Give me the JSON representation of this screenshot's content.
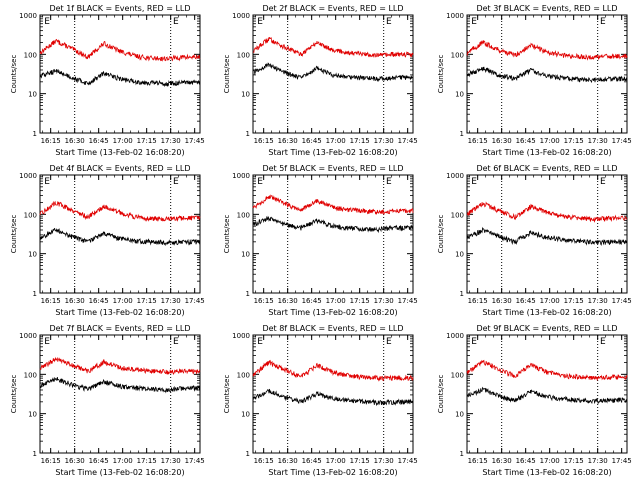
{
  "chart_data": [
    {
      "type": "line",
      "title": "Det 1f BLACK = Events, RED = LLD",
      "ylabel": "Counts/sec",
      "xlabel": "Start Time (13-Feb-02 16:08:20)",
      "tick_labels": [
        "16:15",
        "16:30",
        "16:45",
        "17:00",
        "17:15",
        "17:30",
        "17:45"
      ],
      "ylim": [
        1,
        1000
      ],
      "y_scale": "log",
      "y_tick_labels": [
        "1",
        "10",
        "100",
        "1000"
      ],
      "marker_label": "E",
      "colors": {
        "events": "#000000",
        "lld": "#e00000"
      },
      "series": [
        {
          "role": "lld",
          "x": [
            0,
            10,
            20,
            30,
            40,
            50,
            60,
            70,
            80,
            90
          ],
          "values": [
            110,
            220,
            140,
            85,
            190,
            120,
            90,
            80,
            78,
            85
          ]
        },
        {
          "role": "events",
          "x": [
            0,
            10,
            20,
            30,
            40,
            50,
            60,
            70,
            80,
            90
          ],
          "values": [
            28,
            38,
            26,
            18,
            33,
            24,
            20,
            19,
            18,
            19
          ]
        }
      ]
    },
    {
      "type": "line",
      "title": "Det 2f BLACK = Events, RED = LLD",
      "ylabel": "Counts/sec",
      "xlabel": "Start Time (13-Feb-02 16:08:20)",
      "tick_labels": [
        "16:15",
        "16:30",
        "16:45",
        "17:00",
        "17:15",
        "17:30",
        "17:45"
      ],
      "ylim": [
        1,
        1000
      ],
      "y_scale": "log",
      "y_tick_labels": [
        "1",
        "10",
        "100",
        "1000"
      ],
      "marker_label": "E",
      "colors": {
        "events": "#000000",
        "lld": "#e00000"
      },
      "series": [
        {
          "role": "lld",
          "x": [
            0,
            10,
            20,
            30,
            40,
            50,
            60,
            70,
            80,
            90
          ],
          "values": [
            120,
            250,
            150,
            100,
            200,
            130,
            110,
            100,
            95,
            100
          ]
        },
        {
          "role": "events",
          "x": [
            0,
            10,
            20,
            30,
            40,
            50,
            60,
            70,
            80,
            90
          ],
          "values": [
            35,
            55,
            35,
            25,
            45,
            30,
            27,
            25,
            24,
            26
          ]
        }
      ]
    },
    {
      "type": "line",
      "title": "Det 3f BLACK = Events, RED = LLD",
      "ylabel": "Counts/sec",
      "xlabel": "Start Time (13-Feb-02 16:08:20)",
      "tick_labels": [
        "16:15",
        "16:30",
        "16:45",
        "17:00",
        "17:15",
        "17:30",
        "17:45"
      ],
      "ylim": [
        1,
        1000
      ],
      "y_scale": "log",
      "y_tick_labels": [
        "1",
        "10",
        "100",
        "1000"
      ],
      "marker_label": "E",
      "colors": {
        "events": "#000000",
        "lld": "#e00000"
      },
      "series": [
        {
          "role": "lld",
          "x": [
            0,
            10,
            20,
            30,
            40,
            50,
            60,
            70,
            80,
            90
          ],
          "values": [
            110,
            200,
            130,
            95,
            170,
            115,
            95,
            88,
            84,
            90
          ]
        },
        {
          "role": "events",
          "x": [
            0,
            10,
            20,
            30,
            40,
            50,
            60,
            70,
            80,
            90
          ],
          "values": [
            30,
            45,
            30,
            24,
            40,
            28,
            25,
            23,
            22,
            24
          ]
        }
      ]
    },
    {
      "type": "line",
      "title": "Det 4f BLACK = Events, RED = LLD",
      "ylabel": "Counts/sec",
      "xlabel": "Start Time (13-Feb-02 16:08:20)",
      "tick_labels": [
        "16:15",
        "16:30",
        "16:45",
        "17:00",
        "17:15",
        "17:30",
        "17:45"
      ],
      "ylim": [
        1,
        1000
      ],
      "y_scale": "log",
      "y_tick_labels": [
        "1",
        "10",
        "100",
        "1000"
      ],
      "marker_label": "E",
      "colors": {
        "events": "#000000",
        "lld": "#e00000"
      },
      "series": [
        {
          "role": "lld",
          "x": [
            0,
            10,
            20,
            30,
            40,
            50,
            60,
            70,
            80,
            90
          ],
          "values": [
            100,
            200,
            130,
            85,
            160,
            110,
            85,
            78,
            76,
            80
          ]
        },
        {
          "role": "events",
          "x": [
            0,
            10,
            20,
            30,
            40,
            50,
            60,
            70,
            80,
            90
          ],
          "values": [
            25,
            40,
            27,
            20,
            33,
            24,
            21,
            20,
            19,
            20
          ]
        }
      ]
    },
    {
      "type": "line",
      "title": "Det 5f BLACK = Events, RED = LLD",
      "ylabel": "Counts/sec",
      "xlabel": "Start Time (13-Feb-02 16:08:20)",
      "tick_labels": [
        "16:15",
        "16:30",
        "16:45",
        "17:00",
        "17:15",
        "17:30",
        "17:45"
      ],
      "ylim": [
        1,
        1000
      ],
      "y_scale": "log",
      "y_tick_labels": [
        "1",
        "10",
        "100",
        "1000"
      ],
      "marker_label": "E",
      "colors": {
        "events": "#000000",
        "lld": "#e00000"
      },
      "series": [
        {
          "role": "lld",
          "x": [
            0,
            10,
            20,
            30,
            40,
            50,
            60,
            70,
            80,
            90
          ],
          "values": [
            150,
            280,
            190,
            130,
            220,
            150,
            130,
            120,
            115,
            125
          ]
        },
        {
          "role": "events",
          "x": [
            0,
            10,
            20,
            30,
            40,
            50,
            60,
            70,
            80,
            90
          ],
          "values": [
            55,
            80,
            55,
            45,
            70,
            50,
            45,
            42,
            42,
            45
          ]
        }
      ]
    },
    {
      "type": "line",
      "title": "Det 6f BLACK = Events, RED = LLD",
      "ylabel": "Counts/sec",
      "xlabel": "Start Time (13-Feb-02 16:08:20)",
      "tick_labels": [
        "16:15",
        "16:30",
        "16:45",
        "17:00",
        "17:15",
        "17:30",
        "17:45"
      ],
      "ylim": [
        1,
        1000
      ],
      "y_scale": "log",
      "y_tick_labels": [
        "1",
        "10",
        "100",
        "1000"
      ],
      "marker_label": "E",
      "colors": {
        "events": "#000000",
        "lld": "#e00000"
      },
      "series": [
        {
          "role": "lld",
          "x": [
            0,
            10,
            20,
            30,
            40,
            50,
            60,
            70,
            80,
            90
          ],
          "values": [
            100,
            190,
            125,
            85,
            160,
            110,
            90,
            80,
            76,
            80
          ]
        },
        {
          "role": "events",
          "x": [
            0,
            10,
            20,
            30,
            40,
            50,
            60,
            70,
            80,
            90
          ],
          "values": [
            25,
            40,
            27,
            20,
            35,
            26,
            23,
            21,
            19,
            20
          ]
        }
      ]
    },
    {
      "type": "line",
      "title": "Det 7f BLACK = Events, RED = LLD",
      "ylabel": "Counts/sec",
      "xlabel": "Start Time (13-Feb-02 16:08:20)",
      "tick_labels": [
        "16:15",
        "16:30",
        "16:45",
        "17:00",
        "17:15",
        "17:30",
        "17:45"
      ],
      "ylim": [
        1,
        1000
      ],
      "y_scale": "log",
      "y_tick_labels": [
        "1",
        "10",
        "100",
        "1000"
      ],
      "marker_label": "E",
      "colors": {
        "events": "#000000",
        "lld": "#e00000"
      },
      "series": [
        {
          "role": "lld",
          "x": [
            0,
            10,
            20,
            30,
            40,
            50,
            60,
            70,
            80,
            90
          ],
          "values": [
            140,
            250,
            170,
            120,
            210,
            150,
            130,
            120,
            115,
            120
          ]
        },
        {
          "role": "events",
          "x": [
            0,
            10,
            20,
            30,
            40,
            50,
            60,
            70,
            80,
            90
          ],
          "values": [
            50,
            80,
            55,
            42,
            65,
            50,
            45,
            42,
            40,
            45
          ]
        }
      ]
    },
    {
      "type": "line",
      "title": "Det 8f BLACK = Events, RED = LLD",
      "ylabel": "Counts/sec",
      "xlabel": "Start Time (13-Feb-02 16:08:20)",
      "tick_labels": [
        "16:15",
        "16:30",
        "16:45",
        "17:00",
        "17:15",
        "17:30",
        "17:45"
      ],
      "ylim": [
        1,
        1000
      ],
      "y_scale": "log",
      "y_tick_labels": [
        "1",
        "10",
        "100",
        "1000"
      ],
      "marker_label": "E",
      "colors": {
        "events": "#000000",
        "lld": "#e00000"
      },
      "series": [
        {
          "role": "lld",
          "x": [
            0,
            10,
            20,
            30,
            40,
            50,
            60,
            70,
            80,
            90
          ],
          "values": [
            100,
            200,
            130,
            88,
            170,
            115,
            92,
            85,
            80,
            82
          ]
        },
        {
          "role": "events",
          "x": [
            0,
            10,
            20,
            30,
            40,
            50,
            60,
            70,
            80,
            90
          ],
          "values": [
            24,
            38,
            26,
            20,
            32,
            24,
            22,
            20,
            19,
            20
          ]
        }
      ]
    },
    {
      "type": "line",
      "title": "Det 9f BLACK = Events, RED = LLD",
      "ylabel": "Counts/sec",
      "xlabel": "Start Time (13-Feb-02 16:08:20)",
      "tick_labels": [
        "16:15",
        "16:30",
        "16:45",
        "17:00",
        "17:15",
        "17:30",
        "17:45"
      ],
      "ylim": [
        1,
        1000
      ],
      "y_scale": "log",
      "y_tick_labels": [
        "1",
        "10",
        "100",
        "1000"
      ],
      "marker_label": "E",
      "colors": {
        "events": "#000000",
        "lld": "#e00000"
      },
      "series": [
        {
          "role": "lld",
          "x": [
            0,
            10,
            20,
            30,
            40,
            50,
            60,
            70,
            80,
            90
          ],
          "values": [
            110,
            210,
            135,
            90,
            170,
            115,
            92,
            85,
            80,
            85
          ]
        },
        {
          "role": "events",
          "x": [
            0,
            10,
            20,
            30,
            40,
            50,
            60,
            70,
            80,
            90
          ],
          "values": [
            28,
            42,
            28,
            22,
            36,
            27,
            24,
            22,
            21,
            22
          ]
        }
      ]
    }
  ]
}
